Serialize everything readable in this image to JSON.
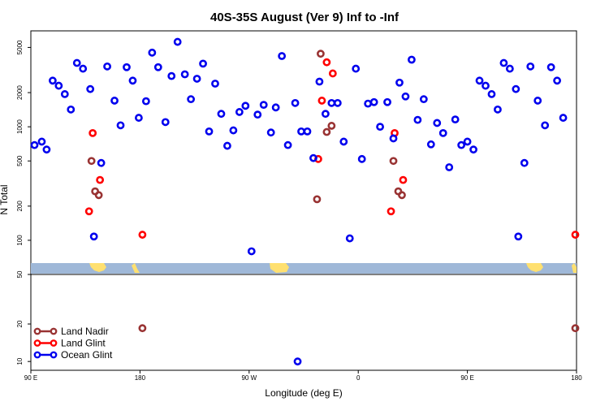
{
  "chart_data": {
    "type": "scatter",
    "title": "40S-35S August (Ver 9)   Inf to -Inf",
    "xlabel": "Longitude (deg E)",
    "ylabel": "N Total",
    "x_ticks": [
      {
        "value": 90,
        "label": "90 E"
      },
      {
        "value": 180,
        "label": "180"
      },
      {
        "value": 270,
        "label": "90 W"
      },
      {
        "value": 360,
        "label": "0"
      },
      {
        "value": 450,
        "label": "90 E"
      },
      {
        "value": 540,
        "label": "180"
      }
    ],
    "xlim": [
      90,
      540
    ],
    "upper_panel": {
      "scale": "log",
      "ylim": [
        50,
        7000
      ],
      "y_ticks": [
        {
          "value": 100,
          "label": "100"
        },
        {
          "value": 200,
          "label": "200"
        },
        {
          "value": 500,
          "label": "500"
        },
        {
          "value": 1000,
          "label": "1000"
        },
        {
          "value": 2000,
          "label": "2000"
        },
        {
          "value": 5000,
          "label": "5000"
        }
      ]
    },
    "lower_panel": {
      "scale": "log",
      "ylim": [
        8.5,
        50
      ],
      "y_ticks": [
        {
          "value": 10,
          "label": "10"
        },
        {
          "value": 20,
          "label": "20"
        },
        {
          "value": 50,
          "label": "50"
        }
      ]
    },
    "legend_position": "lower-left",
    "series": [
      {
        "name": "Land Nadir",
        "color": "#993333",
        "points": [
          [
            140,
            500
          ],
          [
            143,
            270
          ],
          [
            146,
            250
          ],
          [
            326,
            230
          ],
          [
            329,
            4400
          ],
          [
            334,
            900
          ],
          [
            338,
            1020
          ],
          [
            389,
            500
          ],
          [
            393,
            270
          ],
          [
            396,
            250
          ],
          [
            182,
            18.5
          ],
          [
            539,
            18.5
          ]
        ]
      },
      {
        "name": "Land Glint",
        "color": "#ff0000",
        "points": [
          [
            138,
            180
          ],
          [
            141,
            880
          ],
          [
            147,
            340
          ],
          [
            182,
            112
          ],
          [
            327,
            520
          ],
          [
            330,
            1700
          ],
          [
            334,
            3700
          ],
          [
            339,
            2950
          ],
          [
            387,
            180
          ],
          [
            390,
            880
          ],
          [
            397,
            340
          ],
          [
            539,
            112
          ]
        ]
      },
      {
        "name": "Ocean Glint",
        "color": "#0000ee",
        "points": [
          [
            93,
            690
          ],
          [
            99,
            740
          ],
          [
            103,
            630
          ],
          [
            108,
            2550
          ],
          [
            113,
            2300
          ],
          [
            118,
            1940
          ],
          [
            123,
            1420
          ],
          [
            128,
            3650
          ],
          [
            133,
            3250
          ],
          [
            139,
            2150
          ],
          [
            142,
            108
          ],
          [
            148,
            480
          ],
          [
            153,
            3400
          ],
          [
            159,
            1700
          ],
          [
            164,
            1030
          ],
          [
            169,
            3350
          ],
          [
            174,
            2550
          ],
          [
            179,
            1200
          ],
          [
            185,
            1680
          ],
          [
            190,
            4500
          ],
          [
            195,
            3350
          ],
          [
            201,
            1100
          ],
          [
            206,
            2800
          ],
          [
            211,
            5600
          ],
          [
            217,
            2900
          ],
          [
            222,
            1750
          ],
          [
            227,
            2650
          ],
          [
            232,
            3600
          ],
          [
            237,
            910
          ],
          [
            242,
            2400
          ],
          [
            247,
            1300
          ],
          [
            252,
            680
          ],
          [
            257,
            930
          ],
          [
            262,
            1350
          ],
          [
            267,
            1530
          ],
          [
            272,
            80
          ],
          [
            277,
            1280
          ],
          [
            282,
            1560
          ],
          [
            288,
            890
          ],
          [
            292,
            1480
          ],
          [
            297,
            4200
          ],
          [
            302,
            690
          ],
          [
            308,
            1620
          ],
          [
            313,
            910
          ],
          [
            318,
            910
          ],
          [
            323,
            530
          ],
          [
            328,
            2500
          ],
          [
            333,
            1300
          ],
          [
            338,
            1620
          ],
          [
            343,
            1620
          ],
          [
            348,
            740
          ],
          [
            353,
            104
          ],
          [
            358,
            3250
          ],
          [
            363,
            520
          ],
          [
            368,
            1600
          ],
          [
            373,
            1650
          ],
          [
            378,
            1000
          ],
          [
            384,
            1650
          ],
          [
            389,
            790
          ],
          [
            394,
            2450
          ],
          [
            399,
            1850
          ],
          [
            404,
            3900
          ],
          [
            409,
            1150
          ],
          [
            414,
            1750
          ],
          [
            420,
            700
          ],
          [
            425,
            1080
          ],
          [
            430,
            880
          ],
          [
            435,
            440
          ],
          [
            440,
            1160
          ],
          [
            445,
            690
          ],
          [
            450,
            740
          ],
          [
            455,
            630
          ],
          [
            460,
            2550
          ],
          [
            465,
            2300
          ],
          [
            470,
            1940
          ],
          [
            475,
            1420
          ],
          [
            480,
            3650
          ],
          [
            485,
            3250
          ],
          [
            490,
            2150
          ],
          [
            492,
            108
          ],
          [
            497,
            480
          ],
          [
            502,
            3400
          ],
          [
            508,
            1700
          ],
          [
            514,
            1030
          ],
          [
            519,
            3350
          ],
          [
            524,
            2550
          ],
          [
            529,
            1200
          ],
          [
            310,
            10
          ]
        ]
      }
    ]
  }
}
